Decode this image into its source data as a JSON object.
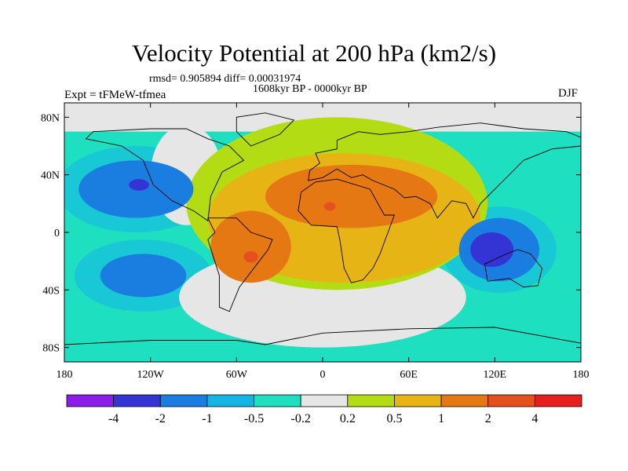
{
  "header": {
    "title": "Velocity Potential at 200 hPa (km2/s)",
    "stats": "rmsd= 0.905894 diff= 0.00031974",
    "period": "1608kyr BP - 0000kyr BP",
    "experiment": "Expt = tFMeW-tfmea",
    "season": "DJF"
  },
  "chart_data": {
    "type": "heatmap",
    "title": "Velocity Potential at 200 hPa (km2/s)",
    "projection": "cylindrical-equidistant",
    "xlim": [
      -180,
      180
    ],
    "ylim": [
      -90,
      90
    ],
    "x_ticks": [
      {
        "value": -180,
        "label": "180"
      },
      {
        "value": -120,
        "label": "120W"
      },
      {
        "value": -60,
        "label": "60W"
      },
      {
        "value": 0,
        "label": "0"
      },
      {
        "value": 60,
        "label": "60E"
      },
      {
        "value": 120,
        "label": "120E"
      },
      {
        "value": 180,
        "label": "180"
      }
    ],
    "y_ticks": [
      {
        "value": 80,
        "label": "80N"
      },
      {
        "value": 40,
        "label": "40N"
      },
      {
        "value": 0,
        "label": "0"
      },
      {
        "value": -40,
        "label": "40S"
      },
      {
        "value": -80,
        "label": "80S"
      }
    ],
    "contour_levels": [
      "-4",
      "-2",
      "-1",
      "-0.5",
      "-0.2",
      "0.2",
      "0.5",
      "1",
      "2",
      "4"
    ],
    "colorbar_colors": [
      "#8a1ee8",
      "#3434d4",
      "#1a7ee0",
      "#14b4e6",
      "#1ee0c0",
      "#e6e6e6",
      "#b4dc14",
      "#e6b414",
      "#e67814",
      "#e6501e",
      "#e61e1e"
    ],
    "ocean_background": "#1ee0c0",
    "fields": [
      {
        "sign": "positive",
        "center": [
          15,
          10
        ],
        "radius": [
          95,
          45
        ],
        "level": "0.5 to 1"
      },
      {
        "sign": "positive",
        "center": [
          20,
          25
        ],
        "radius": [
          60,
          22
        ],
        "level": "1 to 2"
      },
      {
        "sign": "positive",
        "center": [
          -50,
          -10
        ],
        "radius": [
          28,
          25
        ],
        "level": "1 to 2"
      },
      {
        "sign": "positive",
        "center": [
          5,
          18
        ],
        "radius": [
          4,
          3
        ],
        "level": "2 to 4"
      },
      {
        "sign": "positive",
        "center": [
          -50,
          -17
        ],
        "radius": [
          5,
          4
        ],
        "level": "2 to 4"
      },
      {
        "sign": "negative",
        "center": [
          -130,
          30
        ],
        "radius": [
          40,
          20
        ],
        "level": "-1 to -2"
      },
      {
        "sign": "negative",
        "center": [
          -128,
          33
        ],
        "radius": [
          7,
          4
        ],
        "level": "-2 to -4"
      },
      {
        "sign": "negative",
        "center": [
          -125,
          -30
        ],
        "radius": [
          30,
          15
        ],
        "level": "-1 to -2"
      },
      {
        "sign": "negative",
        "center": [
          123,
          -12
        ],
        "radius": [
          28,
          22
        ],
        "level": "-1 to -2"
      },
      {
        "sign": "negative",
        "center": [
          118,
          -12
        ],
        "radius": [
          15,
          12
        ],
        "level": "-2 to -4"
      }
    ]
  },
  "colors": {
    "grey_land": "#e6e6e6",
    "frame": "#000000"
  }
}
